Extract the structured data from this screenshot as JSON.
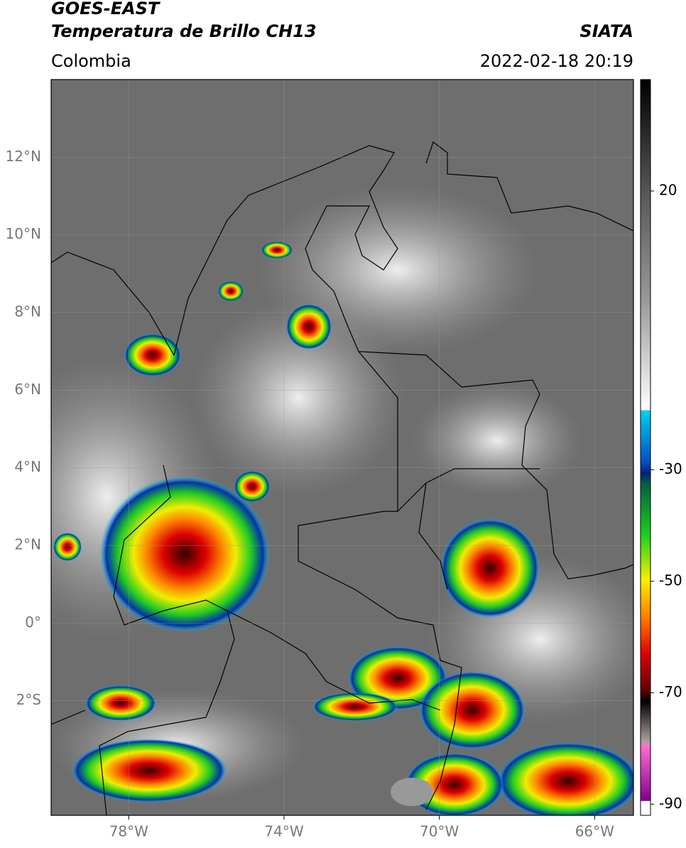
{
  "header": {
    "title": "GOES-EAST",
    "subtitle": "Temperatura de Brillo CH13",
    "region": "Colombia",
    "source": "SIATA",
    "timestamp": "2022-02-18 20:19"
  },
  "map": {
    "lon_range": [
      -80,
      -65
    ],
    "lat_range": [
      -4.95,
      14
    ],
    "lat_ticks": [
      {
        "value": 12,
        "label": "12°N"
      },
      {
        "value": 10,
        "label": "10°N"
      },
      {
        "value": 8,
        "label": "8°N"
      },
      {
        "value": 6,
        "label": "6°N"
      },
      {
        "value": 4,
        "label": "4°N"
      },
      {
        "value": 2,
        "label": "2°N"
      },
      {
        "value": 0,
        "label": "0°"
      },
      {
        "value": -2,
        "label": "2°S"
      }
    ],
    "lon_ticks": [
      {
        "value": -78,
        "label": "78°W"
      },
      {
        "value": -74,
        "label": "74°W"
      },
      {
        "value": -70,
        "label": "70°W"
      },
      {
        "value": -66,
        "label": "66°W"
      }
    ]
  },
  "colorbar": {
    "range": [
      -92,
      40
    ],
    "ticks": [
      20,
      -30,
      -50,
      -70,
      -90
    ]
  }
}
